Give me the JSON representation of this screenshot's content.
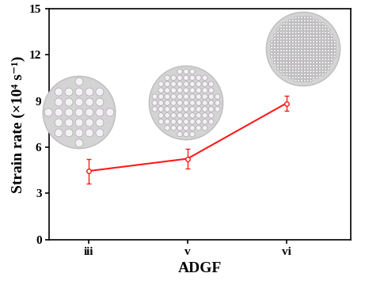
{
  "chart_data": {
    "type": "line",
    "x_label": "ADGF",
    "y_label": "Strain rate (×10⁴ s⁻¹)",
    "categories": [
      "iii",
      "v",
      "vi"
    ],
    "values": [
      4.45,
      5.25,
      8.85
    ],
    "error": [
      0.8,
      0.65,
      0.5
    ],
    "color": "#ff1a1a",
    "marker": "o",
    "line_style": "solid",
    "ylim": [
      0,
      15
    ],
    "yticks": [
      0,
      3,
      6,
      9,
      12,
      15
    ]
  }
}
